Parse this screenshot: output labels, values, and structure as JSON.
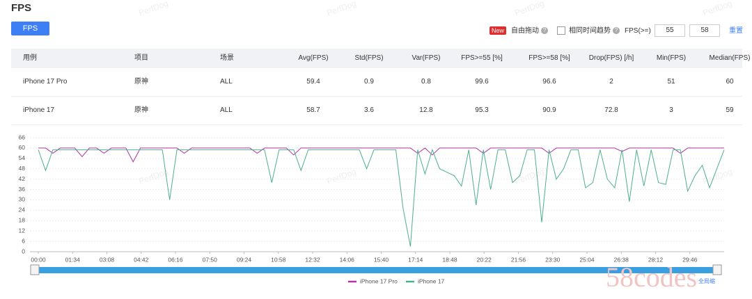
{
  "header": {
    "title": "FPS",
    "tab": "FPS",
    "badge": "New",
    "options": [
      "自由拖动",
      "相同时间趋势"
    ],
    "fps_label": "FPS(>=)",
    "thresholds": [
      55,
      58
    ],
    "reset": "重置"
  },
  "table": {
    "columns": [
      "用例",
      "项目",
      "场景",
      "Avg(FPS)",
      "Std(FPS)",
      "Var(FPS)",
      "FPS>=55 [%]",
      "FPS>=58 [%]",
      "Drop(FPS) [/h]",
      "Min(FPS)",
      "Median(FPS)"
    ],
    "rows": [
      [
        "iPhone 17 Pro",
        "原神",
        "ALL",
        59.4,
        0.9,
        0.8,
        99.6,
        96.6,
        2,
        51,
        60
      ],
      [
        "iPhone 17",
        "原神",
        "ALL",
        58.7,
        3.6,
        12.8,
        95.3,
        90.9,
        72.8,
        3,
        59
      ]
    ]
  },
  "chart_data": {
    "type": "line",
    "ylim": [
      0,
      66
    ],
    "yticks": [
      0,
      6,
      12,
      18,
      24,
      30,
      36,
      42,
      48,
      54,
      60,
      66
    ],
    "grid": true,
    "xlim": [
      0,
      1880
    ],
    "xticks": [
      {
        "value": 0,
        "label": "00:00"
      },
      {
        "value": 94,
        "label": "01:34"
      },
      {
        "value": 188,
        "label": "03:08"
      },
      {
        "value": 282,
        "label": "04:42"
      },
      {
        "value": 376,
        "label": "06:16"
      },
      {
        "value": 470,
        "label": "07:50"
      },
      {
        "value": 564,
        "label": "09:24"
      },
      {
        "value": 658,
        "label": "10:58"
      },
      {
        "value": 752,
        "label": "12:32"
      },
      {
        "value": 846,
        "label": "14:06"
      },
      {
        "value": 940,
        "label": "15:40"
      },
      {
        "value": 1034,
        "label": "17:14"
      },
      {
        "value": 1128,
        "label": "18:48"
      },
      {
        "value": 1222,
        "label": "20:22"
      },
      {
        "value": 1316,
        "label": "21:56"
      },
      {
        "value": 1410,
        "label": "23:30"
      },
      {
        "value": 1504,
        "label": "25:04"
      },
      {
        "value": 1598,
        "label": "26:38"
      },
      {
        "value": 1692,
        "label": "28:12"
      },
      {
        "value": 1786,
        "label": "29:46"
      }
    ],
    "x": [
      0,
      20,
      40,
      60,
      80,
      100,
      120,
      140,
      160,
      180,
      200,
      220,
      240,
      260,
      280,
      300,
      320,
      340,
      360,
      380,
      400,
      420,
      440,
      460,
      480,
      500,
      520,
      540,
      560,
      580,
      600,
      620,
      640,
      660,
      680,
      700,
      720,
      740,
      760,
      780,
      800,
      820,
      840,
      860,
      880,
      900,
      920,
      940,
      960,
      980,
      1000,
      1020,
      1040,
      1060,
      1080,
      1100,
      1120,
      1140,
      1160,
      1180,
      1200,
      1220,
      1240,
      1260,
      1280,
      1300,
      1320,
      1340,
      1360,
      1380,
      1400,
      1420,
      1440,
      1460,
      1480,
      1500,
      1520,
      1540,
      1560,
      1580,
      1600,
      1620,
      1640,
      1660,
      1680,
      1700,
      1720,
      1740,
      1760,
      1780,
      1800,
      1820,
      1840,
      1860,
      1880
    ],
    "series": [
      {
        "name": "iPhone 17 Pro",
        "color": "#b0359f",
        "values": [
          60,
          60,
          57,
          60,
          60,
          60,
          55,
          60,
          60,
          57,
          60,
          60,
          60,
          52,
          60,
          60,
          60,
          60,
          60,
          60,
          57,
          60,
          60,
          60,
          60,
          60,
          60,
          60,
          60,
          60,
          57,
          60,
          60,
          60,
          60,
          56,
          60,
          60,
          60,
          60,
          60,
          60,
          60,
          60,
          60,
          60,
          60,
          60,
          60,
          60,
          60,
          60,
          57,
          60,
          56,
          60,
          60,
          60,
          60,
          60,
          60,
          57,
          60,
          60,
          60,
          60,
          60,
          60,
          60,
          60,
          57,
          60,
          60,
          60,
          60,
          60,
          60,
          60,
          60,
          60,
          58,
          60,
          60,
          60,
          60,
          60,
          60,
          60,
          57,
          60,
          60,
          60,
          60,
          60,
          60
        ]
      },
      {
        "name": "iPhone 17",
        "color": "#4caf8e",
        "values": [
          59,
          47,
          59,
          59,
          59,
          59,
          59,
          59,
          59,
          59,
          59,
          59,
          59,
          59,
          59,
          59,
          59,
          59,
          30,
          59,
          59,
          59,
          59,
          59,
          59,
          59,
          59,
          59,
          59,
          59,
          59,
          59,
          40,
          59,
          59,
          59,
          47,
          59,
          59,
          59,
          59,
          59,
          59,
          59,
          59,
          48,
          59,
          59,
          59,
          59,
          25,
          3,
          59,
          45,
          59,
          48,
          46,
          44,
          38,
          59,
          27,
          59,
          36,
          59,
          59,
          40,
          44,
          59,
          59,
          17,
          59,
          42,
          48,
          59,
          59,
          37,
          40,
          59,
          42,
          37,
          59,
          29,
          59,
          38,
          59,
          40,
          39,
          59,
          59,
          35,
          44,
          50,
          37,
          48,
          59
        ]
      }
    ]
  },
  "zoom_label": "全局缩",
  "watermark": "PerfDog",
  "brand": "58codes"
}
